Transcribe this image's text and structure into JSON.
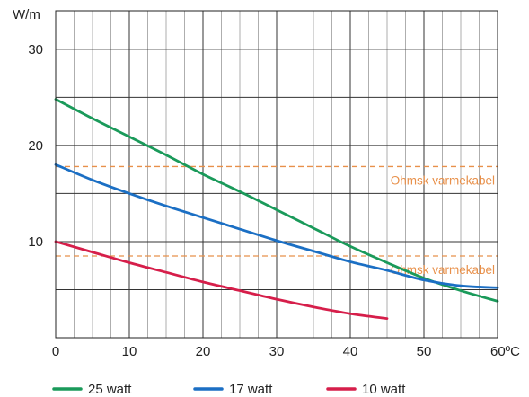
{
  "chart_data": {
    "type": "line",
    "title": "",
    "ylabel": "W/m",
    "xlabel": "",
    "x_unit_suffix": "ºC",
    "xlim": [
      0,
      60
    ],
    "ylim": [
      0,
      34
    ],
    "x_ticks": [
      0,
      10,
      20,
      30,
      40,
      50,
      60
    ],
    "y_ticks": [
      10,
      20,
      30
    ],
    "grid": true,
    "legend_position": "bottom",
    "series": [
      {
        "name": "25 watt",
        "color": "#1a9a5a",
        "points": [
          [
            0,
            24.8
          ],
          [
            5,
            22.8
          ],
          [
            10,
            20.9
          ],
          [
            15,
            19.0
          ],
          [
            20,
            17.0
          ],
          [
            25,
            15.2
          ],
          [
            30,
            13.3
          ],
          [
            35,
            11.4
          ],
          [
            40,
            9.5
          ],
          [
            45,
            7.8
          ],
          [
            50,
            6.2
          ],
          [
            55,
            4.9
          ],
          [
            60,
            3.8
          ]
        ]
      },
      {
        "name": "17 watt",
        "color": "#1b6fc4",
        "points": [
          [
            0,
            18.0
          ],
          [
            5,
            16.4
          ],
          [
            10,
            15.0
          ],
          [
            15,
            13.7
          ],
          [
            20,
            12.5
          ],
          [
            25,
            11.3
          ],
          [
            30,
            10.1
          ],
          [
            35,
            9.0
          ],
          [
            40,
            7.9
          ],
          [
            45,
            7.0
          ],
          [
            50,
            6.0
          ],
          [
            55,
            5.4
          ],
          [
            60,
            5.2
          ]
        ]
      },
      {
        "name": "10 watt",
        "color": "#d61e4a",
        "points": [
          [
            0,
            10.0
          ],
          [
            5,
            8.9
          ],
          [
            10,
            7.8
          ],
          [
            15,
            6.8
          ],
          [
            20,
            5.8
          ],
          [
            25,
            4.9
          ],
          [
            30,
            4.0
          ],
          [
            35,
            3.2
          ],
          [
            40,
            2.5
          ],
          [
            45,
            2.0
          ]
        ]
      }
    ],
    "reference_lines": [
      {
        "y": 17.8,
        "label": "Ohmsk varmekabel",
        "color": "#e8904a"
      },
      {
        "y": 8.5,
        "label": "Ohmsk varmekabel",
        "color": "#e8904a"
      }
    ]
  }
}
